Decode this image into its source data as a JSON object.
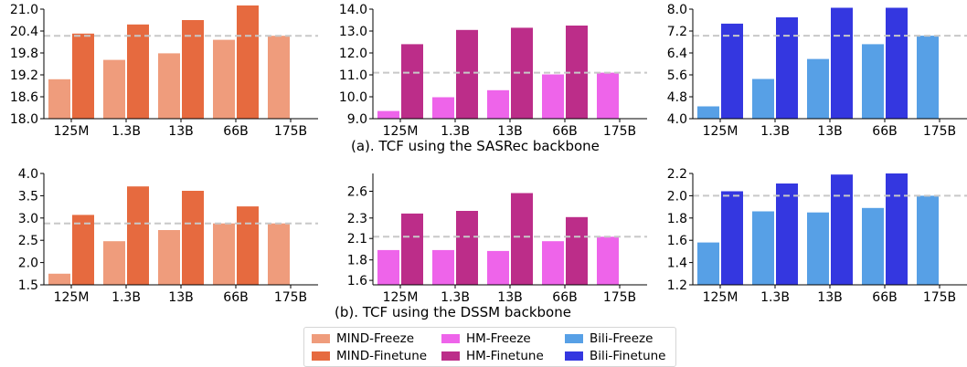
{
  "captions": {
    "a": "(a). TCF using the SASRec backbone",
    "b": "(b). TCF using the DSSM backbone"
  },
  "colors": {
    "mind_freeze": "#ef9c7c",
    "mind_finetune": "#e66a3f",
    "hm_freeze": "#ee64ea",
    "hm_finetune": "#bc2d89",
    "bili_freeze": "#57a0e6",
    "bili_finetune": "#3437e0",
    "reference_line": "#c8c8c8"
  },
  "legend": {
    "items": [
      {
        "label": "MIND-Freeze",
        "color": "#ef9c7c"
      },
      {
        "label": "MIND-Finetune",
        "color": "#e66a3f"
      },
      {
        "label": "HM-Freeze",
        "color": "#ee64ea"
      },
      {
        "label": "HM-Finetune",
        "color": "#bc2d89"
      },
      {
        "label": "Bili-Freeze",
        "color": "#57a0e6"
      },
      {
        "label": "Bili-Finetune",
        "color": "#3437e0"
      }
    ]
  },
  "chart_data": [
    {
      "type": "bar",
      "row": "a",
      "dataset": "MIND",
      "categories": [
        "125M",
        "1.3B",
        "13B",
        "66B",
        "175B"
      ],
      "series": [
        {
          "name": "MIND-Freeze",
          "color": "#ef9c7c",
          "values": [
            19.08,
            19.61,
            19.79,
            20.16,
            20.27
          ]
        },
        {
          "name": "MIND-Finetune",
          "color": "#e66a3f",
          "values": [
            20.33,
            20.58,
            20.7,
            21.1,
            null
          ]
        }
      ],
      "ylim": [
        18.0,
        21.0
      ],
      "yticks": [
        "18.0",
        "18.6",
        "19.2",
        "19.8",
        "20.4",
        "21.0"
      ],
      "reference_line": 20.27,
      "grid": false
    },
    {
      "type": "bar",
      "row": "a",
      "dataset": "HM",
      "categories": [
        "125M",
        "1.3B",
        "13B",
        "66B",
        "175B"
      ],
      "series": [
        {
          "name": "HM-Freeze",
          "color": "#ee64ea",
          "values": [
            9.35,
            9.98,
            10.3,
            11.02,
            11.1
          ]
        },
        {
          "name": "HM-Finetune",
          "color": "#bc2d89",
          "values": [
            12.4,
            13.05,
            13.15,
            13.25,
            null
          ]
        }
      ],
      "ylim": [
        9.0,
        14.0
      ],
      "yticks": [
        "9.0",
        "10.0",
        "11.0",
        "12.0",
        "13.0",
        "14.0"
      ],
      "reference_line": 11.1,
      "grid": false
    },
    {
      "type": "bar",
      "row": "a",
      "dataset": "Bili",
      "categories": [
        "125M",
        "1.3B",
        "13B",
        "66B",
        "175B"
      ],
      "series": [
        {
          "name": "Bili-Freeze",
          "color": "#57a0e6",
          "values": [
            4.45,
            5.45,
            6.18,
            6.72,
            7.03
          ]
        },
        {
          "name": "Bili-Finetune",
          "color": "#3437e0",
          "values": [
            7.47,
            7.7,
            8.05,
            8.05,
            null
          ]
        }
      ],
      "ylim": [
        4.0,
        8.0
      ],
      "yticks": [
        "4.0",
        "4.8",
        "5.6",
        "6.4",
        "7.2",
        "8.0"
      ],
      "reference_line": 7.03,
      "grid": false
    },
    {
      "type": "bar",
      "row": "b",
      "dataset": "MIND",
      "categories": [
        "125M",
        "1.3B",
        "13B",
        "66B",
        "175B"
      ],
      "series": [
        {
          "name": "MIND-Freeze",
          "color": "#ef9c7c",
          "values": [
            1.75,
            2.48,
            2.73,
            2.88,
            2.88
          ]
        },
        {
          "name": "MIND-Finetune",
          "color": "#e66a3f",
          "values": [
            3.07,
            3.71,
            3.61,
            3.26,
            null
          ]
        }
      ],
      "ylim": [
        1.5,
        4.0
      ],
      "yticks": [
        "1.5",
        "2.0",
        "2.5",
        "3.0",
        "3.5",
        "4.0"
      ],
      "reference_line": 2.88,
      "grid": false
    },
    {
      "type": "bar",
      "row": "b",
      "dataset": "HM",
      "categories": [
        "125M",
        "1.3B",
        "13B",
        "66B",
        "175B"
      ],
      "series": [
        {
          "name": "HM-Freeze",
          "color": "#ee64ea",
          "values": [
            1.94,
            1.94,
            1.93,
            2.04,
            2.09
          ]
        },
        {
          "name": "HM-Finetune",
          "color": "#bc2d89",
          "values": [
            2.35,
            2.38,
            2.58,
            2.31,
            null
          ]
        }
      ],
      "ylim": [
        1.55,
        2.8
      ],
      "yticks": [
        "1.6",
        "1.8",
        "2.1",
        "2.3",
        "2.6"
      ],
      "ytick_values": [
        1.6,
        1.83,
        2.07,
        2.3,
        2.6
      ],
      "reference_line": 2.09,
      "grid": false
    },
    {
      "type": "bar",
      "row": "b",
      "dataset": "Bili",
      "categories": [
        "125M",
        "1.3B",
        "13B",
        "66B",
        "175B"
      ],
      "series": [
        {
          "name": "Bili-Freeze",
          "color": "#57a0e6",
          "values": [
            1.58,
            1.86,
            1.85,
            1.89,
            2.0
          ]
        },
        {
          "name": "Bili-Finetune",
          "color": "#3437e0",
          "values": [
            2.04,
            2.11,
            2.19,
            2.2,
            null
          ]
        }
      ],
      "ylim": [
        1.2,
        2.2
      ],
      "yticks": [
        "1.2",
        "1.4",
        "1.6",
        "1.8",
        "2.0",
        "2.2"
      ],
      "reference_line": 2.0,
      "grid": false
    }
  ]
}
